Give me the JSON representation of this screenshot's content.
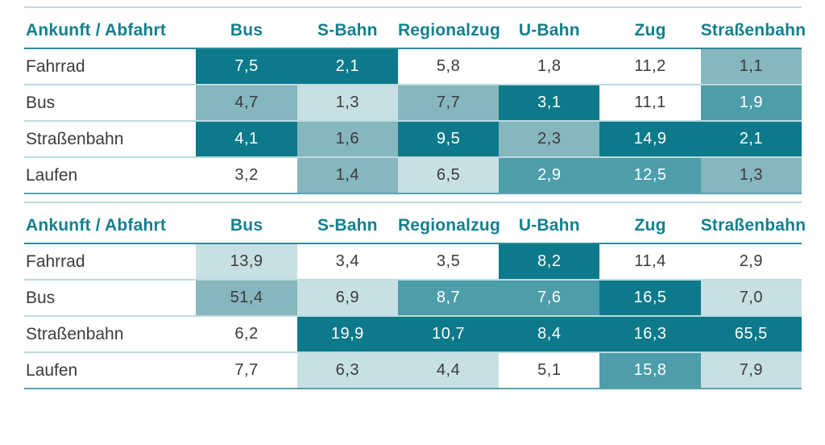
{
  "palette": {
    "cell_dark": "#0c7a8a",
    "cell_medium": "#4d9dab",
    "cell_light": "#86b6be",
    "cell_pale": "#c8e0e3",
    "cell_white": "#ffffff",
    "header_text": "#12808f",
    "body_text": "#3b3b3a",
    "separator_line": "#bcdade",
    "header_underline": "#2e8c99",
    "bottom_border": "#58a3af"
  },
  "tables": [
    {
      "header": [
        "Ankunft / Abfahrt",
        "Bus",
        "S-Bahn",
        "Regionalzug",
        "U-Bahn",
        "Zug",
        "Straßenbahn"
      ],
      "rows": [
        {
          "label": "Fahrrad",
          "cells": [
            {
              "value": "7,5",
              "shade": "dark"
            },
            {
              "value": "2,1",
              "shade": "dark"
            },
            {
              "value": "5,8",
              "shade": "none"
            },
            {
              "value": "1,8",
              "shade": "none"
            },
            {
              "value": "11,2",
              "shade": "none"
            },
            {
              "value": "1,1",
              "shade": "light"
            }
          ]
        },
        {
          "label": "Bus",
          "cells": [
            {
              "value": "4,7",
              "shade": "light"
            },
            {
              "value": "1,3",
              "shade": "pale"
            },
            {
              "value": "7,7",
              "shade": "light"
            },
            {
              "value": "3,1",
              "shade": "dark"
            },
            {
              "value": "11,1",
              "shade": "none"
            },
            {
              "value": "1,9",
              "shade": "medium"
            }
          ]
        },
        {
          "label": "Straßenbahn",
          "cells": [
            {
              "value": "4,1",
              "shade": "dark"
            },
            {
              "value": "1,6",
              "shade": "light"
            },
            {
              "value": "9,5",
              "shade": "dark"
            },
            {
              "value": "2,3",
              "shade": "light"
            },
            {
              "value": "14,9",
              "shade": "dark"
            },
            {
              "value": "2,1",
              "shade": "dark"
            }
          ]
        },
        {
          "label": "Laufen",
          "cells": [
            {
              "value": "3,2",
              "shade": "none"
            },
            {
              "value": "1,4",
              "shade": "light"
            },
            {
              "value": "6,5",
              "shade": "pale"
            },
            {
              "value": "2,9",
              "shade": "medium"
            },
            {
              "value": "12,5",
              "shade": "medium"
            },
            {
              "value": "1,3",
              "shade": "light"
            }
          ]
        }
      ]
    },
    {
      "header": [
        "Ankunft / Abfahrt",
        "Bus",
        "S-Bahn",
        "Regionalzug",
        "U-Bahn",
        "Zug",
        "Straßenbahn"
      ],
      "rows": [
        {
          "label": "Fahrrad",
          "cells": [
            {
              "value": "13,9",
              "shade": "pale"
            },
            {
              "value": "3,4",
              "shade": "none"
            },
            {
              "value": "3,5",
              "shade": "none"
            },
            {
              "value": "8,2",
              "shade": "dark"
            },
            {
              "value": "11,4",
              "shade": "none"
            },
            {
              "value": "2,9",
              "shade": "none"
            }
          ]
        },
        {
          "label": "Bus",
          "cells": [
            {
              "value": "51,4",
              "shade": "light"
            },
            {
              "value": "6,9",
              "shade": "pale"
            },
            {
              "value": "8,7",
              "shade": "medium"
            },
            {
              "value": "7,6",
              "shade": "medium"
            },
            {
              "value": "16,5",
              "shade": "dark"
            },
            {
              "value": "7,0",
              "shade": "pale"
            }
          ]
        },
        {
          "label": "Straßenbahn",
          "cells": [
            {
              "value": "6,2",
              "shade": "none"
            },
            {
              "value": "19,9",
              "shade": "dark"
            },
            {
              "value": "10,7",
              "shade": "dark"
            },
            {
              "value": "8,4",
              "shade": "dark"
            },
            {
              "value": "16,3",
              "shade": "dark"
            },
            {
              "value": "65,5",
              "shade": "dark"
            }
          ]
        },
        {
          "label": "Laufen",
          "cells": [
            {
              "value": "7,7",
              "shade": "none"
            },
            {
              "value": "6,3",
              "shade": "pale"
            },
            {
              "value": "4,4",
              "shade": "pale"
            },
            {
              "value": "5,1",
              "shade": "none"
            },
            {
              "value": "15,8",
              "shade": "medium"
            },
            {
              "value": "7,9",
              "shade": "pale"
            }
          ]
        }
      ]
    }
  ],
  "chart_data": [
    {
      "type": "heatmap",
      "title": "",
      "corner_label": "Ankunft / Abfahrt",
      "columns": [
        "Bus",
        "S-Bahn",
        "Regionalzug",
        "U-Bahn",
        "Zug",
        "Straßenbahn"
      ],
      "rows": [
        "Fahrrad",
        "Bus",
        "Straßenbahn",
        "Laufen"
      ],
      "values": [
        [
          7.5,
          2.1,
          5.8,
          1.8,
          11.2,
          1.1
        ],
        [
          4.7,
          1.3,
          7.7,
          3.1,
          11.1,
          1.9
        ],
        [
          4.1,
          1.6,
          9.5,
          2.3,
          14.9,
          2.1
        ],
        [
          3.2,
          1.4,
          6.5,
          2.9,
          12.5,
          1.3
        ]
      ],
      "decimal_separator": ",",
      "legend_position": "none"
    },
    {
      "type": "heatmap",
      "title": "",
      "corner_label": "Ankunft / Abfahrt",
      "columns": [
        "Bus",
        "S-Bahn",
        "Regionalzug",
        "U-Bahn",
        "Zug",
        "Straßenbahn"
      ],
      "rows": [
        "Fahrrad",
        "Bus",
        "Straßenbahn",
        "Laufen"
      ],
      "values": [
        [
          13.9,
          3.4,
          3.5,
          8.2,
          11.4,
          2.9
        ],
        [
          51.4,
          6.9,
          8.7,
          7.6,
          16.5,
          7.0
        ],
        [
          6.2,
          19.9,
          10.7,
          8.4,
          16.3,
          65.5
        ],
        [
          7.7,
          6.3,
          4.4,
          5.1,
          15.8,
          7.9
        ]
      ],
      "decimal_separator": ",",
      "legend_position": "none"
    }
  ]
}
